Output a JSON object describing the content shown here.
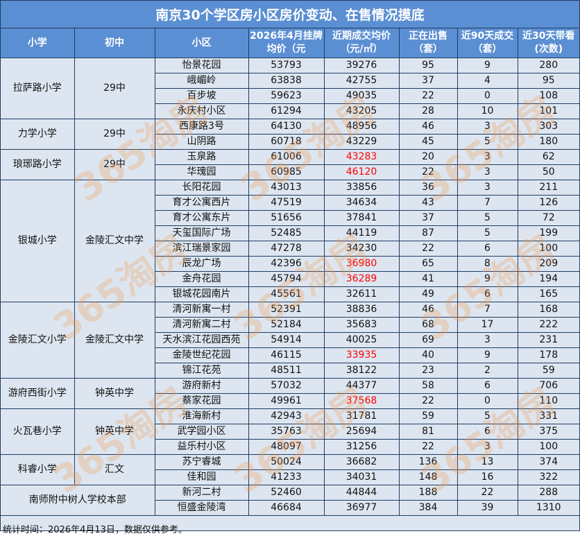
{
  "title": "南京30个学区房小区房价变动、在售情况摸底",
  "headers": [
    "小学",
    "初中",
    "小区",
    "2026年4月挂牌均价（元",
    "近期成交均价（元/㎡）",
    "正在出售（套）",
    "近90天成交（套）",
    "近30天带看(次数)"
  ],
  "highlight_color": "#ff0000",
  "header_bg": "#5b8fd3",
  "groups": [
    {
      "primary": "拉萨路小学",
      "middle": "29中",
      "rows": [
        {
          "name": "怡景花园",
          "listing": "53793",
          "deal": "39276",
          "on_sale": "95",
          "sold_90": "9",
          "views_30": "280"
        },
        {
          "name": "峨嵋岭",
          "listing": "63838",
          "deal": "42755",
          "on_sale": "37",
          "sold_90": "4",
          "views_30": "95"
        },
        {
          "name": "百步坡",
          "listing": "59623",
          "deal": "49035",
          "on_sale": "22",
          "sold_90": "0",
          "views_30": "108"
        },
        {
          "name": "永庆村小区",
          "listing": "61294",
          "deal": "43205",
          "on_sale": "28",
          "sold_90": "10",
          "views_30": "101"
        }
      ]
    },
    {
      "primary": "力学小学",
      "middle": "29中",
      "rows": [
        {
          "name": "西康路3号",
          "listing": "64130",
          "deal": "48956",
          "on_sale": "46",
          "sold_90": "3",
          "views_30": "303"
        },
        {
          "name": "山阴路",
          "listing": "60718",
          "deal": "43229",
          "on_sale": "45",
          "sold_90": "5",
          "views_30": "180"
        }
      ]
    },
    {
      "primary": "琅琊路小学",
      "middle": "29中",
      "rows": [
        {
          "name": "玉泉路",
          "listing": "61006",
          "deal": "43283",
          "deal_highlight": true,
          "on_sale": "20",
          "sold_90": "3",
          "views_30": "62"
        },
        {
          "name": "华瑰园",
          "listing": "60985",
          "deal": "46120",
          "deal_highlight": true,
          "on_sale": "22",
          "sold_90": "3",
          "views_30": "50"
        }
      ]
    },
    {
      "primary": "银城小学",
      "middle": "金陵汇文中学",
      "rows": [
        {
          "name": "长阳花园",
          "listing": "43013",
          "deal": "33856",
          "on_sale": "36",
          "sold_90": "3",
          "views_30": "211"
        },
        {
          "name": "育才公寓西片",
          "listing": "47519",
          "deal": "34634",
          "on_sale": "43",
          "sold_90": "7",
          "views_30": "126"
        },
        {
          "name": "育才公寓东片",
          "listing": "51656",
          "deal": "37841",
          "on_sale": "37",
          "sold_90": "5",
          "views_30": "72"
        },
        {
          "name": "天玺国际广场",
          "listing": "52485",
          "deal": "44119",
          "on_sale": "87",
          "sold_90": "5",
          "views_30": "199"
        },
        {
          "name": "滨江瑞景家园",
          "listing": "47278",
          "deal": "34230",
          "on_sale": "22",
          "sold_90": "6",
          "views_30": "100"
        },
        {
          "name": "辰龙广场",
          "listing": "42396",
          "deal": "36980",
          "deal_highlight": true,
          "on_sale": "65",
          "sold_90": "8",
          "views_30": "209"
        },
        {
          "name": "金舟花园",
          "listing": "45794",
          "deal": "36289",
          "deal_highlight": true,
          "on_sale": "41",
          "sold_90": "9",
          "views_30": "194"
        },
        {
          "name": "银城花园南片",
          "listing": "45561",
          "deal": "32611",
          "on_sale": "49",
          "sold_90": "6",
          "views_30": "165"
        }
      ]
    },
    {
      "primary": "金陵汇文小学",
      "middle": "金陵汇文中学",
      "rows": [
        {
          "name": "清河新寓一村",
          "listing": "52391",
          "deal": "38836",
          "on_sale": "46",
          "sold_90": "7",
          "views_30": "168"
        },
        {
          "name": "清河新寓二村",
          "listing": "52184",
          "deal": "35683",
          "on_sale": "68",
          "sold_90": "17",
          "views_30": "222"
        },
        {
          "name": "天水滨江花园西苑",
          "listing": "54914",
          "deal": "40025",
          "on_sale": "69",
          "sold_90": "3",
          "views_30": "231"
        },
        {
          "name": "金陵世纪花园",
          "listing": "46115",
          "deal": "33935",
          "deal_highlight": true,
          "on_sale": "40",
          "sold_90": "9",
          "views_30": "178"
        },
        {
          "name": "锦江花苑",
          "listing": "48511",
          "deal": "38122",
          "on_sale": "23",
          "sold_90": "2",
          "views_30": "59"
        }
      ]
    },
    {
      "primary": "游府西街小学",
      "middle": "钟英中学",
      "rows": [
        {
          "name": "游府新村",
          "listing": "57032",
          "deal": "44377",
          "on_sale": "58",
          "sold_90": "6",
          "views_30": "706"
        },
        {
          "name": "蔡家花园",
          "listing": "49961",
          "deal": "37568",
          "deal_highlight": true,
          "on_sale": "22",
          "sold_90": "0",
          "views_30": "110"
        }
      ]
    },
    {
      "primary": "火瓦巷小学",
      "middle": "钟英中学",
      "rows": [
        {
          "name": "淮海新村",
          "listing": "42943",
          "deal": "31781",
          "on_sale": "59",
          "sold_90": "5",
          "views_30": "331"
        },
        {
          "name": "武学园小区",
          "listing": "35763",
          "deal": "25694",
          "on_sale": "81",
          "sold_90": "6",
          "views_30": "375"
        },
        {
          "name": "益乐村小区",
          "listing": "48097",
          "deal": "31256",
          "on_sale": "22",
          "sold_90": "3",
          "views_30": "100"
        }
      ]
    },
    {
      "primary": "科睿小学",
      "middle": "汇文",
      "rows": [
        {
          "name": "苏宁睿城",
          "listing": "50024",
          "deal": "36682",
          "on_sale": "136",
          "sold_90": "13",
          "views_30": "374"
        },
        {
          "name": "佳和园",
          "listing": "41233",
          "deal": "34031",
          "on_sale": "148",
          "sold_90": "16",
          "views_30": "322"
        }
      ]
    },
    {
      "primary": "南师附中树人学校本部",
      "merged": true,
      "rows": [
        {
          "name": "新河二村",
          "listing": "52460",
          "deal": "44844",
          "on_sale": "188",
          "sold_90": "22",
          "views_30": "288"
        },
        {
          "name": "恒盛金陵湾",
          "listing": "46684",
          "deal": "36977",
          "on_sale": "384",
          "sold_90": "39",
          "views_30": "1310"
        }
      ]
    }
  ],
  "footer": "统计时间：2026年4月13日，数据仅供参考。",
  "watermark": "365淘房"
}
